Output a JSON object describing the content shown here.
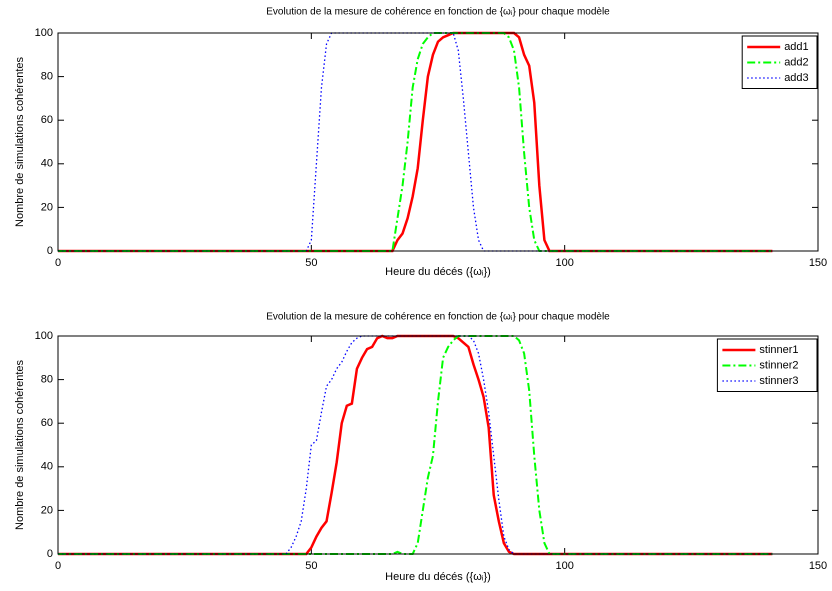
{
  "chart_data": [
    {
      "type": "line",
      "title": "Evolution de la mesure de cohérence en fonction de {ωᵢ} pour chaque modèle",
      "x_label": "Heure du décés ({ωᵢ})",
      "y_label": "Nombre de simulations cohérentes",
      "x": [
        0,
        45,
        46,
        47,
        48,
        49,
        50,
        51,
        52,
        53,
        54,
        55,
        56,
        57,
        58,
        59,
        60,
        61,
        62,
        63,
        64,
        65,
        66,
        67,
        68,
        69,
        70,
        71,
        72,
        73,
        74,
        75,
        76,
        77,
        78,
        79,
        80,
        81,
        82,
        83,
        84,
        85,
        86,
        87,
        88,
        89,
        90,
        91,
        92,
        93,
        94,
        95,
        96,
        97,
        141
      ],
      "series": [
        {
          "name": "add1",
          "color": "#ff0000",
          "style": "solid",
          "values": [
            0,
            0,
            0,
            0,
            0,
            0,
            0,
            0,
            0,
            0,
            0,
            0,
            0,
            0,
            0,
            0,
            0,
            0,
            0,
            0,
            0,
            0,
            0,
            5,
            8,
            15,
            25,
            38,
            60,
            80,
            90,
            96,
            98,
            99,
            100,
            100,
            100,
            100,
            100,
            100,
            100,
            100,
            100,
            100,
            100,
            100,
            100,
            98,
            90,
            85,
            68,
            30,
            5,
            0,
            0
          ]
        },
        {
          "name": "add2",
          "color": "#00ff00",
          "style": "dashdot",
          "values": [
            0,
            0,
            0,
            0,
            0,
            0,
            0,
            0,
            0,
            0,
            0,
            0,
            0,
            0,
            0,
            0,
            0,
            0,
            0,
            0,
            0,
            0,
            0,
            15,
            30,
            50,
            75,
            88,
            95,
            98,
            100,
            100,
            100,
            100,
            100,
            100,
            100,
            100,
            100,
            100,
            100,
            100,
            100,
            100,
            100,
            98,
            92,
            75,
            45,
            20,
            5,
            0,
            0,
            0,
            0
          ]
        },
        {
          "name": "add3",
          "color": "#0000ff",
          "style": "dotted",
          "values": [
            0,
            0,
            0,
            0,
            0,
            0,
            5,
            40,
            75,
            95,
            100,
            100,
            100,
            100,
            100,
            100,
            100,
            100,
            100,
            100,
            100,
            100,
            100,
            100,
            100,
            100,
            100,
            100,
            100,
            100,
            100,
            100,
            100,
            100,
            100,
            92,
            70,
            45,
            20,
            5,
            0,
            0,
            0,
            0,
            0,
            0,
            0,
            0,
            0,
            0,
            0,
            0,
            0,
            0,
            0
          ]
        }
      ],
      "xlim": [
        0,
        150
      ],
      "xticks": [
        0,
        50,
        100,
        150
      ],
      "ylim": [
        0,
        100
      ],
      "yticks": [
        0,
        20,
        40,
        60,
        80,
        100
      ],
      "legend": "upper right"
    },
    {
      "type": "line",
      "title": "Evolution de la mesure de cohérence en fonction de {ωᵢ} pour chaque modèle",
      "x_label": "Heure du décés ({ωᵢ})",
      "y_label": "Nombre de simulations cohérentes",
      "x": [
        0,
        45,
        46,
        47,
        48,
        49,
        50,
        51,
        52,
        53,
        54,
        55,
        56,
        57,
        58,
        59,
        60,
        61,
        62,
        63,
        64,
        65,
        66,
        67,
        68,
        69,
        70,
        71,
        72,
        73,
        74,
        75,
        76,
        77,
        78,
        79,
        80,
        81,
        82,
        83,
        84,
        85,
        86,
        87,
        88,
        89,
        90,
        91,
        92,
        93,
        94,
        95,
        96,
        97,
        141
      ],
      "series": [
        {
          "name": "stinner1",
          "color": "#ff0000",
          "style": "solid",
          "values": [
            0,
            0,
            0,
            0,
            0,
            0,
            3,
            8,
            12,
            15,
            28,
            42,
            60,
            68,
            69,
            85,
            90,
            94,
            95,
            99,
            100,
            99,
            99,
            100,
            100,
            100,
            100,
            100,
            100,
            100,
            100,
            100,
            100,
            100,
            100,
            99,
            97,
            95,
            87,
            80,
            72,
            58,
            27,
            15,
            5,
            1,
            0,
            0,
            0,
            0,
            0,
            0,
            0,
            0,
            0
          ]
        },
        {
          "name": "stinner2",
          "color": "#00ff00",
          "style": "dashdot",
          "values": [
            0,
            0,
            0,
            0,
            0,
            0,
            0,
            0,
            0,
            0,
            0,
            0,
            0,
            0,
            0,
            0,
            0,
            0,
            0,
            0,
            0,
            0,
            0,
            1,
            0,
            0,
            0,
            5,
            20,
            35,
            45,
            70,
            90,
            95,
            98,
            100,
            100,
            100,
            100,
            100,
            100,
            100,
            100,
            100,
            100,
            100,
            100,
            98,
            92,
            75,
            45,
            20,
            5,
            0,
            0
          ]
        },
        {
          "name": "stinner3",
          "color": "#0000ff",
          "style": "dotted",
          "values": [
            0,
            0,
            3,
            8,
            15,
            30,
            50,
            52,
            65,
            77,
            80,
            85,
            88,
            93,
            97,
            99,
            100,
            100,
            100,
            100,
            100,
            100,
            100,
            100,
            100,
            100,
            100,
            100,
            100,
            100,
            100,
            100,
            100,
            100,
            100,
            100,
            100,
            100,
            98,
            92,
            80,
            65,
            45,
            25,
            8,
            2,
            0,
            0,
            0,
            0,
            0,
            0,
            0,
            0,
            0
          ]
        }
      ],
      "xlim": [
        0,
        150
      ],
      "xticks": [
        0,
        50,
        100,
        150
      ],
      "ylim": [
        0,
        100
      ],
      "yticks": [
        0,
        20,
        40,
        60,
        80,
        100
      ],
      "legend": "upper right"
    }
  ]
}
